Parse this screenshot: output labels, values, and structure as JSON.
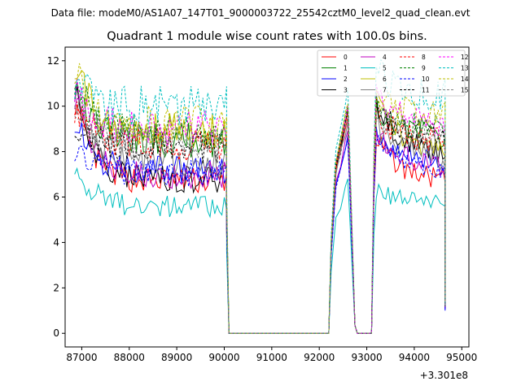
{
  "header": {
    "datafile": "Data file: modeM0/AS1A07_147T01_9000003722_25542cztM0_level2_quad_clean.evt"
  },
  "chart_data": {
    "type": "line",
    "title": "Quadrant 1 module wise count rates with 100.0s bins.",
    "xlabel": "",
    "ylabel": "",
    "x_offset_label": "+3.301e8",
    "xlim": [
      86650,
      95150
    ],
    "ylim": [
      -0.6,
      12.6
    ],
    "x_ticks": [
      87000,
      88000,
      89000,
      90000,
      91000,
      92000,
      93000,
      94000,
      95000
    ],
    "x_tick_labels": [
      "87000",
      "88000",
      "89000",
      "90000",
      "91000",
      "92000",
      "93000",
      "94000",
      "95000"
    ],
    "y_ticks": [
      0,
      2,
      4,
      6,
      8,
      10,
      12
    ],
    "y_tick_labels": [
      "0",
      "2",
      "4",
      "6",
      "8",
      "10",
      "12"
    ],
    "legend_position": "upper right",
    "segments": [
      {
        "start": 86850,
        "end": 90050
      },
      {
        "gap_start": 90100,
        "gap_end": 92200
      },
      {
        "start": 92200,
        "end": 92650
      },
      {
        "start": 92750,
        "end": 93100
      },
      {
        "start": 93150,
        "end": 94650
      }
    ],
    "series": [
      {
        "name": "0",
        "color": "#ff0000",
        "dash": "solid",
        "start": 10.2,
        "mean": 6.7,
        "spike": 9.5,
        "post_peak": 8.6,
        "post_mean": 6.7,
        "end": 1.1
      },
      {
        "name": "1",
        "color": "#008000",
        "dash": "solid",
        "start": 11.5,
        "mean": 8.5,
        "spike": 9.9,
        "post_peak": 10.0,
        "post_mean": 8.7,
        "end": 1.2
      },
      {
        "name": "2",
        "color": "#0000ff",
        "dash": "solid",
        "start": 9.5,
        "mean": 7.2,
        "spike": 8.7,
        "post_peak": 8.8,
        "post_mean": 7.5,
        "end": 1.0
      },
      {
        "name": "3",
        "color": "#000000",
        "dash": "solid",
        "start": 10.8,
        "mean": 6.8,
        "spike": 9.7,
        "post_peak": 10.1,
        "post_mean": 7.9,
        "end": 1.3
      },
      {
        "name": "4",
        "color": "#bf00bf",
        "dash": "solid",
        "start": 10.5,
        "mean": 7.0,
        "spike": 8.9,
        "post_peak": 9.0,
        "post_mean": 7.3,
        "end": 1.1
      },
      {
        "name": "5",
        "color": "#00bfbf",
        "dash": "solid",
        "start": 7.5,
        "mean": 5.6,
        "spike": 6.8,
        "post_peak": 6.2,
        "post_mean": 5.8,
        "end": 1.2
      },
      {
        "name": "6",
        "color": "#bfbf00",
        "dash": "solid",
        "start": 12.0,
        "mean": 8.9,
        "spike": 9.8,
        "post_peak": 10.2,
        "post_mean": 8.0,
        "end": 1.4
      },
      {
        "name": "7",
        "color": "#808080",
        "dash": "solid",
        "start": 10.7,
        "mean": 7.5,
        "spike": 9.3,
        "post_peak": 9.2,
        "post_mean": 7.6,
        "end": 1.2
      },
      {
        "name": "8",
        "color": "#ff0000",
        "dash": "dashed",
        "start": 10.0,
        "mean": 8.3,
        "spike": 9.6,
        "post_peak": 9.7,
        "post_mean": 8.4,
        "end": 1.3
      },
      {
        "name": "9",
        "color": "#008000",
        "dash": "dashed",
        "start": 11.3,
        "mean": 8.9,
        "spike": 10.0,
        "post_peak": 10.1,
        "post_mean": 8.9,
        "end": 1.3
      },
      {
        "name": "10",
        "color": "#0000ff",
        "dash": "dashed",
        "start": 8.2,
        "mean": 7.0,
        "spike": 8.5,
        "post_peak": 8.7,
        "post_mean": 7.2,
        "end": 1.0
      },
      {
        "name": "11",
        "color": "#000000",
        "dash": "dashed",
        "start": 9.4,
        "mean": 8.2,
        "spike": 9.8,
        "post_peak": 9.8,
        "post_mean": 8.7,
        "end": 1.2
      },
      {
        "name": "12",
        "color": "#ff00ff",
        "dash": "dashed",
        "start": 11.0,
        "mean": 9.0,
        "spike": 10.0,
        "post_peak": 10.6,
        "post_mean": 9.1,
        "end": 1.3
      },
      {
        "name": "13",
        "color": "#00bfbf",
        "dash": "dashed",
        "start": 11.2,
        "mean": 10.0,
        "spike": 10.8,
        "post_peak": 11.6,
        "post_mean": 10.4,
        "end": 1.3
      },
      {
        "name": "14",
        "color": "#bfbf00",
        "dash": "dashed",
        "start": 11.8,
        "mean": 9.2,
        "spike": 10.1,
        "post_peak": 10.5,
        "post_mean": 9.5,
        "end": 1.4
      },
      {
        "name": "15",
        "color": "#808080",
        "dash": "dashed",
        "start": 10.3,
        "mean": 8.4,
        "spike": 9.5,
        "post_peak": 9.7,
        "post_mean": 8.6,
        "end": 1.2
      }
    ]
  }
}
